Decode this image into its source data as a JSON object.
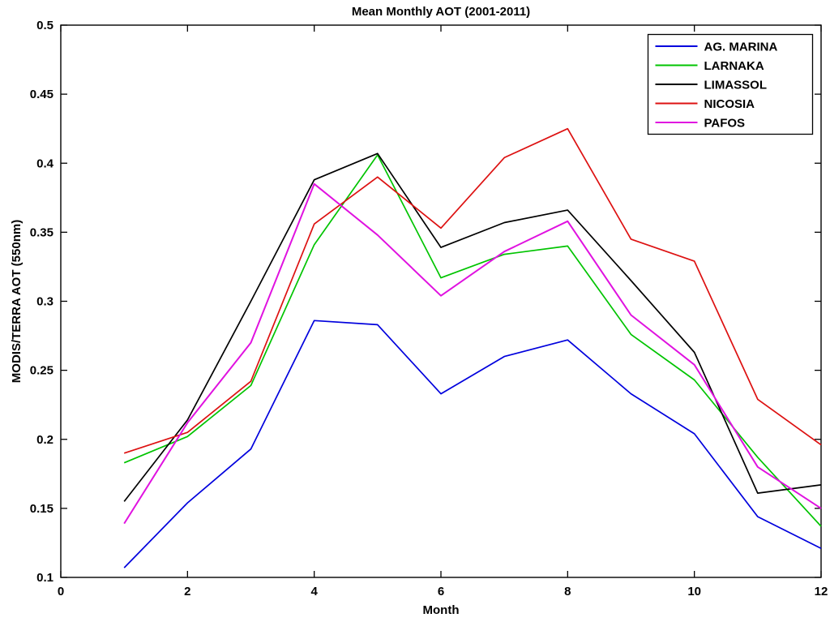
{
  "page": {
    "background": "#ffffff",
    "frame_color": "#000000"
  },
  "chart_data": {
    "type": "line",
    "title": "Mean Monthly AOT (2001-2011)",
    "xlabel": "Month",
    "ylabel": "MODIS/TERRA AOT (550nm)",
    "xlim": [
      0,
      12
    ],
    "ylim": [
      0.1,
      0.5
    ],
    "xtick_values": [
      0,
      2,
      4,
      6,
      8,
      10,
      12
    ],
    "xtick_labels": [
      "0",
      "2",
      "4",
      "6",
      "8",
      "10",
      "12"
    ],
    "ytick_values": [
      0.1,
      0.15,
      0.2,
      0.25,
      0.3,
      0.35,
      0.4,
      0.45,
      0.5
    ],
    "ytick_labels": [
      "0.1",
      "0.15",
      "0.2",
      "0.25",
      "0.3",
      "0.35",
      "0.4",
      "0.45",
      "0.5"
    ],
    "grid": false,
    "legend_position": "top-right",
    "x": [
      1,
      2,
      3,
      4,
      5,
      6,
      7,
      8,
      9,
      10,
      11,
      12
    ],
    "series": [
      {
        "name": "AG. MARINA",
        "color": "#0000dd",
        "values": [
          0.107,
          0.154,
          0.193,
          0.286,
          0.283,
          0.233,
          0.26,
          0.272,
          0.233,
          0.204,
          0.144,
          0.121
        ]
      },
      {
        "name": "LARNAKA",
        "color": "#00c400",
        "values": [
          0.183,
          0.202,
          0.239,
          0.341,
          0.406,
          0.317,
          0.334,
          0.34,
          0.276,
          0.243,
          0.187,
          0.137
        ]
      },
      {
        "name": "LIMASSOL",
        "color": "#000000",
        "values": [
          0.155,
          0.214,
          0.3,
          0.388,
          0.407,
          0.339,
          0.357,
          0.366,
          0.315,
          0.263,
          0.161,
          0.167
        ]
      },
      {
        "name": "NICOSIA",
        "color": "#dd1111",
        "values": [
          0.19,
          0.205,
          0.242,
          0.356,
          0.39,
          0.353,
          0.404,
          0.425,
          0.345,
          0.329,
          0.229,
          0.196
        ]
      },
      {
        "name": "PAFOS",
        "color": "#e012e0",
        "values": [
          0.139,
          0.212,
          0.27,
          0.385,
          0.348,
          0.304,
          0.336,
          0.358,
          0.29,
          0.254,
          0.18,
          0.15
        ]
      }
    ]
  }
}
